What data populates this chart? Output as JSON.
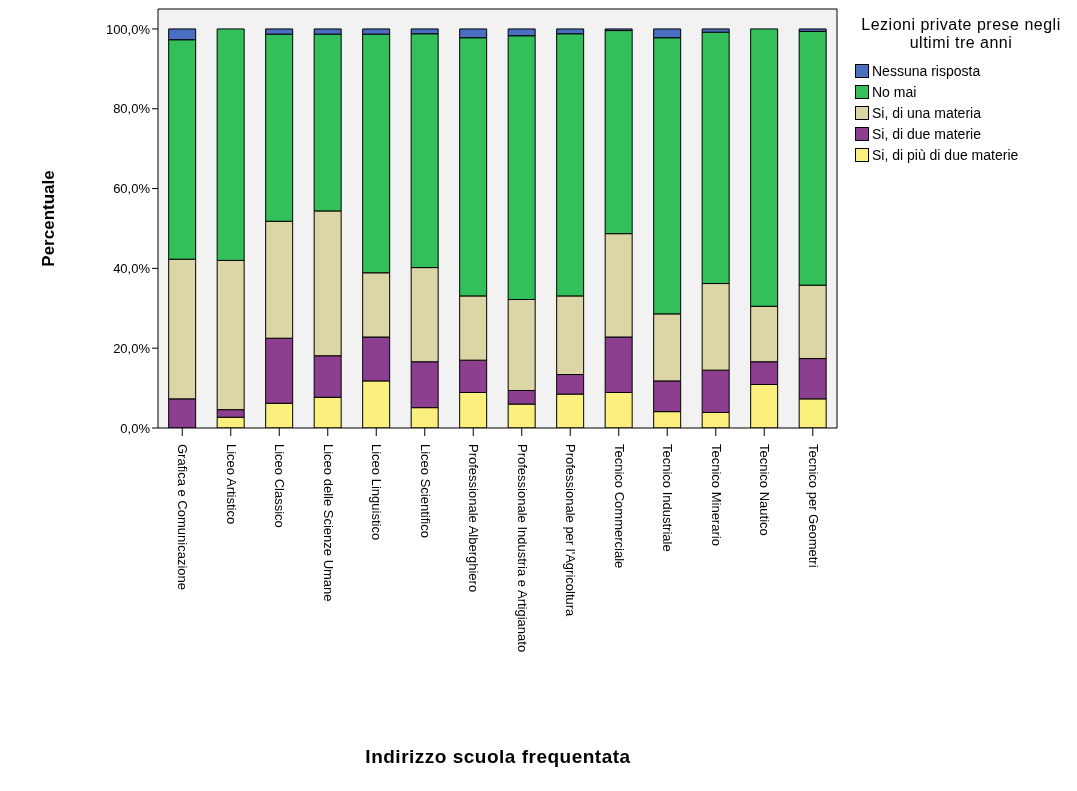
{
  "chart_data": {
    "type": "bar",
    "stacked": true,
    "xlabel": "Indirizzo scuola frequentata",
    "ylabel": "Percentuale",
    "legend_title": "Lezioni private prese negli ultimi tre anni",
    "legend": "top right",
    "grid": false,
    "categories": [
      "Grafica e Comunicazione",
      "Liceo Artistico",
      "Liceo Classico",
      "Liceo delle Scienze Umane",
      "Liceo Linguistico",
      "Liceo Scientifico",
      "Professionale Alberghiero",
      "Professionale Industria e Artigianato",
      "Professionale per l'Agricoltura",
      "Tecnico Commerciale",
      "Tecnico Industriale",
      "Tecnico Minerario",
      "Tecnico Nautico",
      "Tecnico per Geometri"
    ],
    "ylim": [
      0,
      105
    ],
    "yticks": [
      {
        "value": 0,
        "label": "0,0%"
      },
      {
        "value": 20,
        "label": "20,0%"
      },
      {
        "value": 40,
        "label": "40,0%"
      },
      {
        "value": 60,
        "label": "60,0%"
      },
      {
        "value": 80,
        "label": "80,0%"
      },
      {
        "value": 100,
        "label": "100,0%"
      }
    ],
    "series": [
      {
        "name": "Si, di più di due materie",
        "color": "#fbf07e",
        "values": [
          0,
          2.7,
          6.2,
          7.7,
          11.8,
          5.1,
          8.9,
          6.0,
          8.5,
          8.9,
          4.1,
          3.9,
          10.9,
          7.3
        ]
      },
      {
        "name": "Si, di due materie",
        "color": "#8b3f8e",
        "values": [
          7.3,
          1.9,
          16.3,
          10.4,
          11.0,
          11.5,
          8.1,
          3.4,
          4.9,
          13.9,
          7.7,
          10.6,
          5.7,
          10.1
        ]
      },
      {
        "name": "Si, di una materia",
        "color": "#dcd5a5",
        "values": [
          35.0,
          37.4,
          29.3,
          36.3,
          16.1,
          23.6,
          16.1,
          22.8,
          19.7,
          25.9,
          16.8,
          21.7,
          13.9,
          18.4
        ]
      },
      {
        "name": "No mai",
        "color": "#33bf5a",
        "values": [
          55.0,
          58.0,
          46.9,
          44.3,
          59.8,
          58.6,
          64.7,
          66.1,
          65.7,
          50.9,
          69.2,
          63.0,
          69.5,
          63.6
        ]
      },
      {
        "name": "Nessuna risposta",
        "color": "#4a6fc0",
        "values": [
          2.7,
          0,
          1.3,
          1.3,
          1.3,
          1.2,
          2.2,
          1.7,
          1.2,
          0.4,
          2.2,
          0.8,
          0,
          0.6
        ]
      }
    ]
  }
}
